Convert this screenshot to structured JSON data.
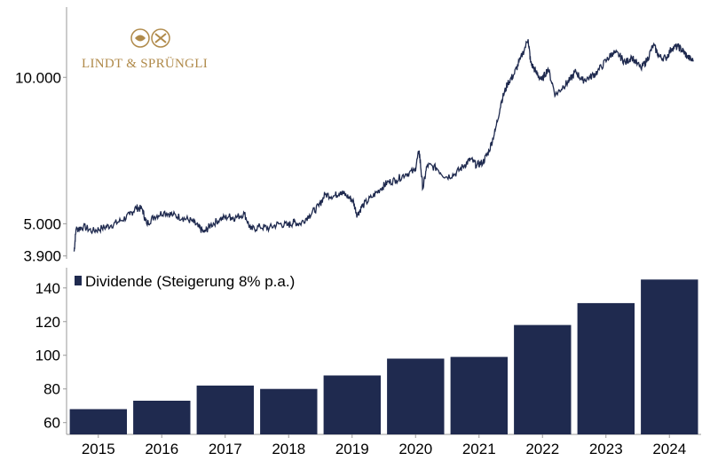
{
  "chart_data": [
    {
      "type": "line",
      "y_ticks": [
        {
          "value": 3900,
          "label": "3.900"
        },
        {
          "value": 5000,
          "label": "5.000"
        },
        {
          "value": 10000,
          "label": "10.000"
        }
      ],
      "ylim": [
        3800,
        12400
      ],
      "xlim": [
        2014.5,
        2024.6
      ],
      "points": [
        [
          2014.55,
          4050
        ],
        [
          2014.58,
          4800
        ],
        [
          2014.7,
          4900
        ],
        [
          2014.85,
          4750
        ],
        [
          2015.0,
          4850
        ],
        [
          2015.15,
          4950
        ],
        [
          2015.3,
          5100
        ],
        [
          2015.45,
          5300
        ],
        [
          2015.55,
          5550
        ],
        [
          2015.65,
          5500
        ],
        [
          2015.72,
          5000
        ],
        [
          2015.85,
          5250
        ],
        [
          2016.0,
          5400
        ],
        [
          2016.15,
          5300
        ],
        [
          2016.3,
          5200
        ],
        [
          2016.45,
          5100
        ],
        [
          2016.55,
          4900
        ],
        [
          2016.65,
          4700
        ],
        [
          2016.75,
          4950
        ],
        [
          2016.9,
          5150
        ],
        [
          2017.05,
          5250
        ],
        [
          2017.15,
          5200
        ],
        [
          2017.3,
          5350
        ],
        [
          2017.4,
          4800
        ],
        [
          2017.55,
          4900
        ],
        [
          2017.7,
          4850
        ],
        [
          2017.85,
          5000
        ],
        [
          2018.0,
          4950
        ],
        [
          2018.1,
          5050
        ],
        [
          2018.2,
          5000
        ],
        [
          2018.35,
          5300
        ],
        [
          2018.5,
          5600
        ],
        [
          2018.6,
          6000
        ],
        [
          2018.75,
          5950
        ],
        [
          2018.85,
          6100
        ],
        [
          2018.95,
          5950
        ],
        [
          2019.05,
          5800
        ],
        [
          2019.12,
          5300
        ],
        [
          2019.2,
          5600
        ],
        [
          2019.35,
          5900
        ],
        [
          2019.5,
          6200
        ],
        [
          2019.6,
          6400
        ],
        [
          2019.75,
          6500
        ],
        [
          2019.9,
          6700
        ],
        [
          2020.05,
          6800
        ],
        [
          2020.12,
          7500
        ],
        [
          2020.18,
          6200
        ],
        [
          2020.25,
          7000
        ],
        [
          2020.4,
          6900
        ],
        [
          2020.55,
          6600
        ],
        [
          2020.7,
          6700
        ],
        [
          2020.85,
          7000
        ],
        [
          2020.95,
          7200
        ],
        [
          2021.05,
          7000
        ],
        [
          2021.15,
          7100
        ],
        [
          2021.25,
          7500
        ],
        [
          2021.35,
          8200
        ],
        [
          2021.45,
          9200
        ],
        [
          2021.55,
          9800
        ],
        [
          2021.65,
          10100
        ],
        [
          2021.75,
          10600
        ],
        [
          2021.88,
          11300
        ],
        [
          2021.92,
          10500
        ],
        [
          2022.0,
          10200
        ],
        [
          2022.1,
          9900
        ],
        [
          2022.2,
          10300
        ],
        [
          2022.32,
          9400
        ],
        [
          2022.45,
          9700
        ],
        [
          2022.55,
          9900
        ],
        [
          2022.65,
          10200
        ],
        [
          2022.75,
          9900
        ],
        [
          2022.88,
          10000
        ],
        [
          2023.0,
          10200
        ],
        [
          2023.15,
          10600
        ],
        [
          2023.25,
          10850
        ],
        [
          2023.35,
          10750
        ],
        [
          2023.45,
          10500
        ],
        [
          2023.55,
          10700
        ],
        [
          2023.7,
          10300
        ],
        [
          2023.8,
          10600
        ],
        [
          2023.9,
          11100
        ],
        [
          2024.0,
          10700
        ],
        [
          2024.1,
          10650
        ],
        [
          2024.2,
          11000
        ],
        [
          2024.3,
          11050
        ],
        [
          2024.38,
          10900
        ],
        [
          2024.45,
          10700
        ],
        [
          2024.55,
          10550
        ]
      ],
      "line_color": "#1f2a4f"
    },
    {
      "type": "bar",
      "categories": [
        "2015",
        "2016",
        "2017",
        "2018",
        "2019",
        "2020",
        "2021",
        "2022",
        "2023",
        "2024"
      ],
      "series": [
        {
          "name": "Dividende (Steigerung 8% p.a.)",
          "values": [
            68,
            73,
            82,
            80,
            88,
            98,
            99,
            118,
            131,
            145
          ]
        }
      ],
      "y_ticks": [
        60,
        80,
        100,
        120,
        140
      ],
      "ylim": [
        53,
        152
      ],
      "bar_color": "#1f2a4f"
    }
  ],
  "logo": {
    "text": "LINDT & SPRÜNGLI",
    "color": "#b08a4a"
  }
}
